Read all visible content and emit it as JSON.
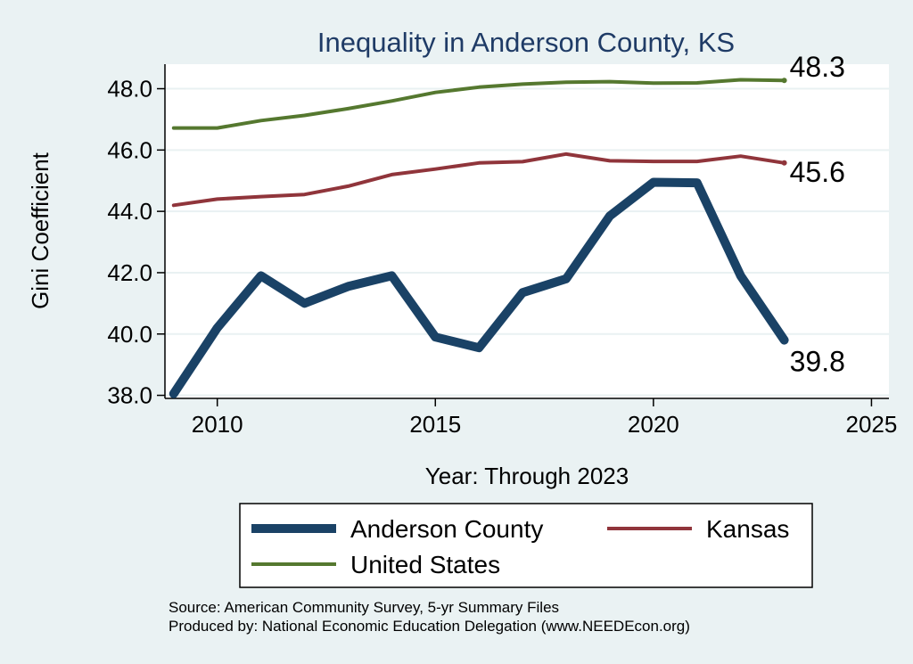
{
  "chart_data": {
    "type": "line",
    "title": "Inequality in Anderson County, KS",
    "xlabel": "Year: Through 2023",
    "ylabel": "Gini Coefficient",
    "xlim": [
      2008.8,
      2025.4
    ],
    "ylim": [
      37.9,
      48.8
    ],
    "x_ticks": [
      2010,
      2015,
      2020,
      2025
    ],
    "y_ticks": [
      38.0,
      40.0,
      42.0,
      44.0,
      46.0,
      48.0
    ],
    "y_tick_labels": [
      "38.0",
      "40.0",
      "42.0",
      "44.0",
      "46.0",
      "48.0"
    ],
    "x": [
      2009,
      2010,
      2011,
      2012,
      2013,
      2014,
      2015,
      2016,
      2017,
      2018,
      2019,
      2020,
      2021,
      2022,
      2023
    ],
    "series": [
      {
        "name": "Anderson County",
        "color": "#1a4266",
        "end_label": "39.8",
        "values": [
          38.05,
          40.2,
          41.9,
          41.0,
          41.55,
          41.9,
          39.9,
          39.55,
          41.35,
          41.8,
          43.85,
          44.95,
          44.93,
          41.9,
          39.8
        ]
      },
      {
        "name": "Kansas",
        "color": "#90353b",
        "end_label": "45.6",
        "values": [
          44.2,
          44.4,
          44.48,
          44.55,
          44.82,
          45.2,
          45.38,
          45.58,
          45.62,
          45.87,
          45.65,
          45.63,
          45.63,
          45.8,
          45.58
        ]
      },
      {
        "name": "United States",
        "color": "#55782f",
        "end_label": "48.3",
        "values": [
          46.72,
          46.72,
          46.96,
          47.13,
          47.35,
          47.6,
          47.88,
          48.05,
          48.15,
          48.21,
          48.23,
          48.18,
          48.19,
          48.29,
          48.27
        ]
      }
    ],
    "legend_position": "bottom",
    "grid": true
  },
  "source": {
    "line1": "Source: American Community Survey, 5-yr Summary Files",
    "line2": "Produced by: National Economic Education Delegation (www.NEEDEcon.org)"
  }
}
